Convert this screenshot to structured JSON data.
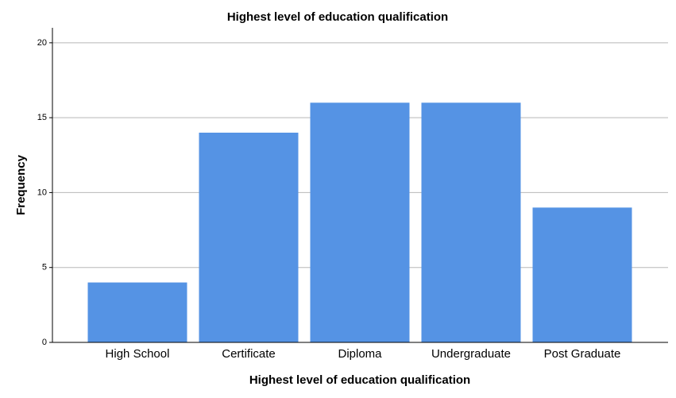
{
  "chart_data": {
    "type": "bar",
    "title": "Highest level of education qualification",
    "x_label": "Highest level of education qualification",
    "y_label": "Frequency",
    "categories": [
      "High School",
      "Certificate",
      "Diploma",
      "Undergraduate",
      "Post Graduate"
    ],
    "values": [
      4,
      14,
      16,
      16,
      9
    ],
    "color": "#5593e4",
    "ylim": [
      0,
      21
    ],
    "yticks": [
      0,
      5,
      10,
      15,
      20
    ],
    "grid": true
  }
}
